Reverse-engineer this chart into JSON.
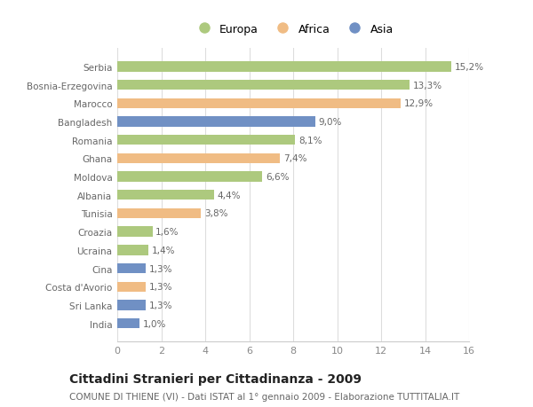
{
  "countries": [
    "Serbia",
    "Bosnia-Erzegovina",
    "Marocco",
    "Bangladesh",
    "Romania",
    "Ghana",
    "Moldova",
    "Albania",
    "Tunisia",
    "Croazia",
    "Ucraina",
    "Cina",
    "Costa d'Avorio",
    "Sri Lanka",
    "India"
  ],
  "values": [
    15.2,
    13.3,
    12.9,
    9.0,
    8.1,
    7.4,
    6.6,
    4.4,
    3.8,
    1.6,
    1.4,
    1.3,
    1.3,
    1.3,
    1.0
  ],
  "continents": [
    "Europa",
    "Europa",
    "Africa",
    "Asia",
    "Europa",
    "Africa",
    "Europa",
    "Europa",
    "Africa",
    "Europa",
    "Europa",
    "Asia",
    "Africa",
    "Asia",
    "Asia"
  ],
  "colors": {
    "Europa": "#adc97e",
    "Africa": "#f0bc84",
    "Asia": "#7090c4"
  },
  "legend_labels": [
    "Europa",
    "Africa",
    "Asia"
  ],
  "xlim": [
    0,
    16
  ],
  "xticks": [
    0,
    2,
    4,
    6,
    8,
    10,
    12,
    14,
    16
  ],
  "title": "Cittadini Stranieri per Cittadinanza - 2009",
  "subtitle": "COMUNE DI THIENE (VI) - Dati ISTAT al 1° gennaio 2009 - Elaborazione TUTTITALIA.IT",
  "title_fontsize": 10,
  "subtitle_fontsize": 7.5,
  "label_fontsize": 7.5,
  "ytick_fontsize": 7.5,
  "xtick_fontsize": 8,
  "bar_height": 0.55,
  "background_color": "#ffffff",
  "grid_color": "#dddddd"
}
